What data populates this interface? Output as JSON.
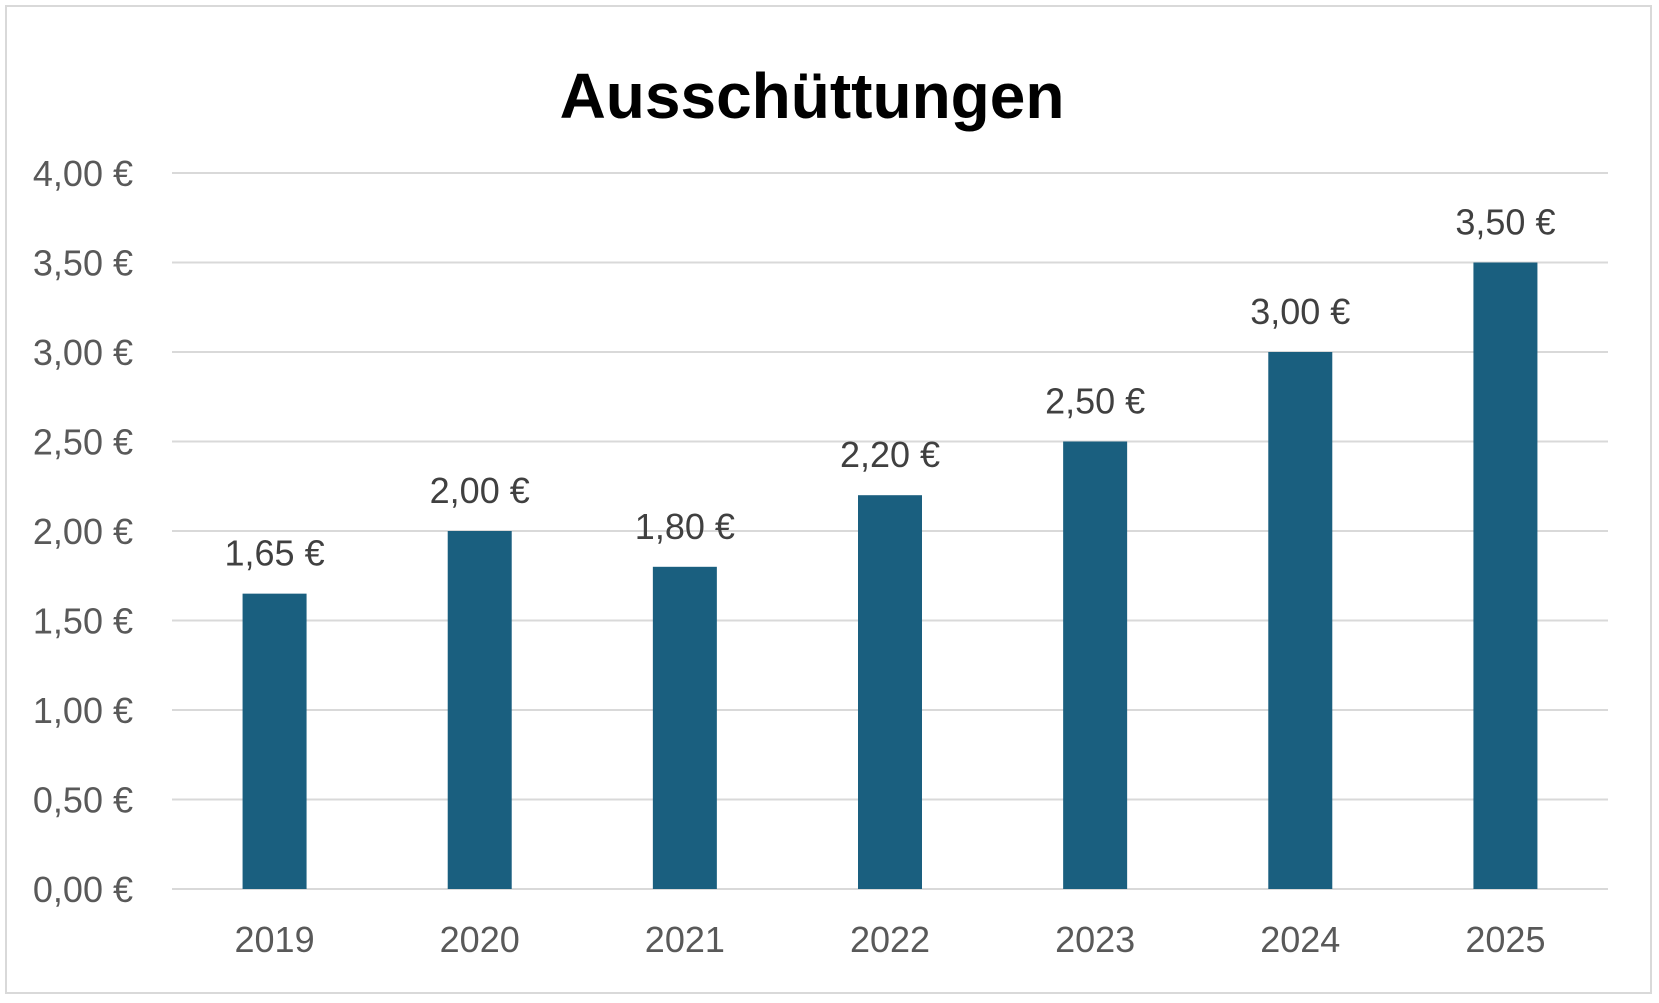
{
  "chart_data": {
    "type": "bar",
    "title": "Ausschüttungen",
    "xlabel": "",
    "ylabel": "",
    "categories": [
      "2019",
      "2020",
      "2021",
      "2022",
      "2023",
      "2024",
      "2025"
    ],
    "values": [
      1.65,
      2.0,
      1.8,
      2.2,
      2.5,
      3.0,
      3.5
    ],
    "data_labels": [
      "1,65 €",
      "2,00 €",
      "1,80 €",
      "2,20 €",
      "2,50 €",
      "3,00 €",
      "3,50 €"
    ],
    "ylim": [
      0,
      4
    ],
    "y_ticks": [
      0,
      0.5,
      1,
      1.5,
      2,
      2.5,
      3,
      3.5,
      4
    ],
    "y_tick_labels": [
      "0,00 €",
      "0,50 €",
      "1,00 €",
      "1,50 €",
      "2,00 €",
      "2,50 €",
      "3,00 €",
      "3,50 €",
      "4,00 €"
    ],
    "grid": true,
    "legend": "none",
    "bar_color": "#1A5F7F",
    "grid_color": "#d9d9d9",
    "frame_color": "#d9d9d9"
  }
}
